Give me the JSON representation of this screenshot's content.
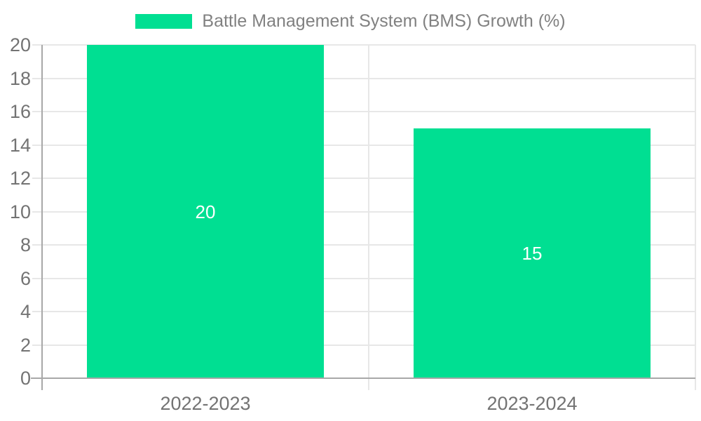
{
  "legend": {
    "label": "Battle Management System (BMS) Growth (%)"
  },
  "chart_data": {
    "type": "bar",
    "title": "Battle Management System (BMS) Growth (%)",
    "categories": [
      "2022-2023",
      "2023-2024"
    ],
    "series": [
      {
        "name": "Battle Management System (BMS) Growth (%)",
        "values": [
          20,
          15
        ]
      }
    ],
    "value_labels": [
      "20",
      "15"
    ],
    "xlabel": "",
    "ylabel": "",
    "ylim": [
      0,
      20
    ],
    "yticks": [
      0,
      2,
      4,
      6,
      8,
      10,
      12,
      14,
      16,
      18,
      20
    ],
    "grid": true,
    "legend_position": "top-center",
    "colors": {
      "bar": "#00DF92",
      "value_label": "#FFFFFF",
      "tick_label": "#737373",
      "legend_label": "#818181",
      "axis_line": "#A8A8A8",
      "gridline": "#E7E7E7",
      "background": "#FFFFFF"
    }
  }
}
